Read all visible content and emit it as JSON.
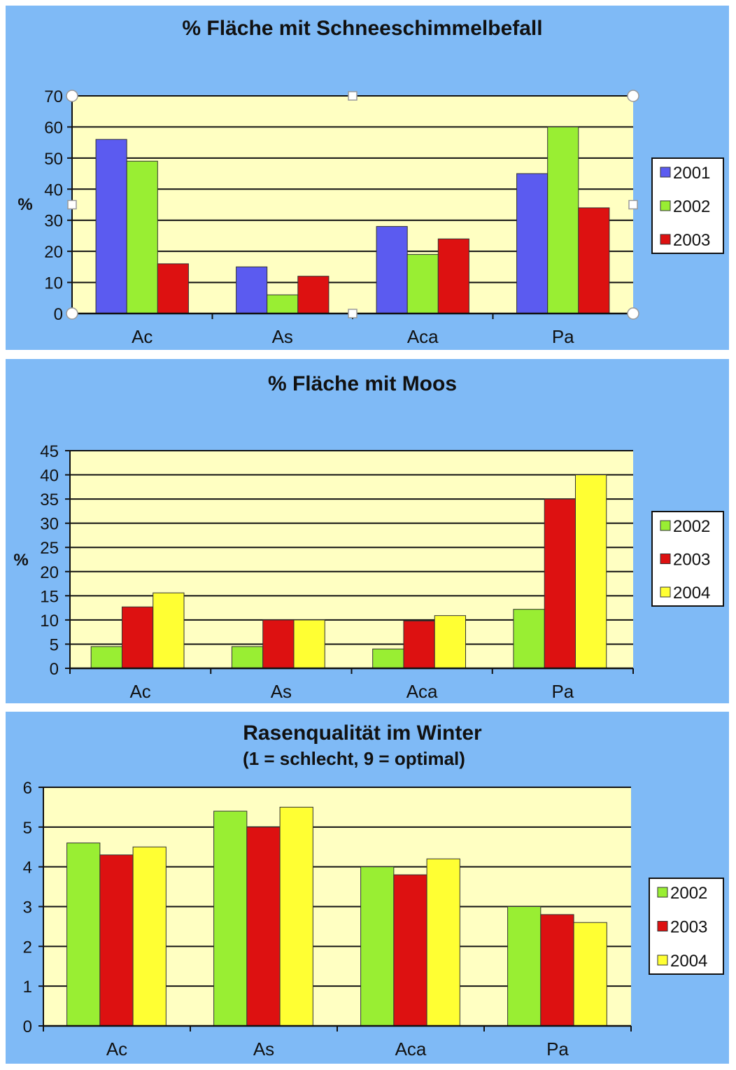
{
  "chart_data": [
    {
      "type": "bar",
      "title": "% Fläche mit Schneeschimmelbefall",
      "subtitle": "",
      "ylabel": "%",
      "xlabel": "",
      "ylim": [
        0,
        70
      ],
      "yticks": [
        0,
        10,
        20,
        30,
        40,
        50,
        60,
        70
      ],
      "grid": true,
      "legend": "right",
      "categories": [
        "Ac",
        "As",
        "Aca",
        "Pa"
      ],
      "series": [
        {
          "name": "2001",
          "color": "#5b5bf0",
          "values": [
            56,
            15,
            28,
            45
          ]
        },
        {
          "name": "2002",
          "color": "#99ee33",
          "values": [
            49,
            6,
            19,
            60
          ]
        },
        {
          "name": "2003",
          "color": "#dd1111",
          "values": [
            16,
            12,
            24,
            34
          ]
        }
      ]
    },
    {
      "type": "bar",
      "title": "% Fläche mit Moos",
      "subtitle": "",
      "ylabel": "%",
      "xlabel": "",
      "ylim": [
        0,
        45
      ],
      "yticks": [
        0,
        5,
        10,
        15,
        20,
        25,
        30,
        35,
        40,
        45
      ],
      "grid": true,
      "legend": "right",
      "categories": [
        "Ac",
        "As",
        "Aca",
        "Pa"
      ],
      "series": [
        {
          "name": "2002",
          "color": "#99ee33",
          "values": [
            4.5,
            4.5,
            4,
            12.2
          ]
        },
        {
          "name": "2003",
          "color": "#dd1111",
          "values": [
            12.7,
            10,
            9.8,
            35
          ]
        },
        {
          "name": "2004",
          "color": "#ffff33",
          "values": [
            15.6,
            10,
            10.9,
            40
          ]
        }
      ]
    },
    {
      "type": "bar",
      "title": "Rasenqualität im Winter",
      "subtitle": "(1 = schlecht,  9 = optimal)",
      "ylabel": "",
      "xlabel": "",
      "ylim": [
        0,
        6
      ],
      "yticks": [
        0,
        1,
        2,
        3,
        4,
        5,
        6
      ],
      "grid": true,
      "legend": "right",
      "categories": [
        "Ac",
        "As",
        "Aca",
        "Pa"
      ],
      "series": [
        {
          "name": "2002",
          "color": "#99ee33",
          "values": [
            4.6,
            5.4,
            4.0,
            3.0
          ]
        },
        {
          "name": "2003",
          "color": "#dd1111",
          "values": [
            4.3,
            5.0,
            3.8,
            2.8
          ]
        },
        {
          "name": "2004",
          "color": "#ffff33",
          "values": [
            4.5,
            5.5,
            4.2,
            2.6
          ]
        }
      ]
    }
  ]
}
